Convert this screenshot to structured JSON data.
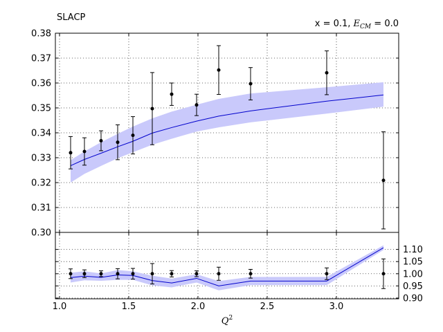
{
  "chart_data": [
    {
      "type": "scatter",
      "panel": "main",
      "label": "SLACP",
      "annotation": "x = 0.1, E_CM = 0.0",
      "annotation_parts": {
        "prefix": "x = 0.1, ",
        "symbol": "E",
        "subscript": "CM",
        "suffix": " = 0.0"
      },
      "xlim": [
        0.97,
        3.45
      ],
      "ylim": [
        0.3,
        0.38
      ],
      "xticks": [
        "1.0",
        "1.5",
        "2.0",
        "2.5",
        "3.0"
      ],
      "xtick_values": [
        1.0,
        1.5,
        2.0,
        2.5,
        3.0
      ],
      "yticks": [
        "0.30",
        "0.31",
        "0.32",
        "0.33",
        "0.34",
        "0.35",
        "0.36",
        "0.37",
        "0.38"
      ],
      "ytick_values": [
        0.3,
        0.31,
        0.32,
        0.33,
        0.34,
        0.35,
        0.36,
        0.37,
        0.38
      ],
      "grid": true,
      "points": {
        "x": [
          1.08,
          1.18,
          1.3,
          1.42,
          1.53,
          1.67,
          1.81,
          1.99,
          2.15,
          2.38,
          2.93,
          3.34
        ],
        "y": [
          0.332,
          0.3325,
          0.3368,
          0.3362,
          0.339,
          0.3497,
          0.3555,
          0.3512,
          0.3652,
          0.3597,
          0.3641,
          0.3209
        ],
        "err": [
          0.0065,
          0.0055,
          0.004,
          0.007,
          0.0075,
          0.0145,
          0.0045,
          0.0043,
          0.0098,
          0.0065,
          0.0088,
          0.0195
        ],
        "color": "#000000"
      },
      "curve": {
        "x": [
          1.08,
          1.18,
          1.3,
          1.42,
          1.53,
          1.67,
          1.81,
          1.99,
          2.15,
          2.38,
          2.93,
          3.34
        ],
        "y": [
          0.3268,
          0.3293,
          0.3318,
          0.3344,
          0.3366,
          0.3399,
          0.3421,
          0.3447,
          0.3467,
          0.3488,
          0.3527,
          0.3552
        ],
        "lo": [
          0.32,
          0.3235,
          0.3267,
          0.3298,
          0.3322,
          0.3352,
          0.3376,
          0.3405,
          0.3422,
          0.3442,
          0.3477,
          0.3505
        ],
        "hi": [
          0.329,
          0.3325,
          0.3362,
          0.3396,
          0.3425,
          0.3458,
          0.3485,
          0.3513,
          0.3536,
          0.3558,
          0.3583,
          0.3603
        ],
        "line_color": "#0000cc",
        "band_color": "#c9c9fb"
      }
    },
    {
      "type": "scatter",
      "panel": "ratio",
      "xlim": [
        0.97,
        3.45
      ],
      "ylim": [
        0.897,
        1.17
      ],
      "yticks": [
        "0.90",
        "0.95",
        "1.00",
        "1.05",
        "1.10"
      ],
      "ytick_values": [
        0.9,
        0.95,
        1.0,
        1.05,
        1.1
      ],
      "xlabel": "Q^2",
      "xlabel_parts": {
        "symbol": "Q",
        "superscript": "2"
      },
      "grid": true,
      "points": {
        "x": [
          1.08,
          1.18,
          1.3,
          1.42,
          1.53,
          1.67,
          1.81,
          1.99,
          2.15,
          2.38,
          2.93,
          3.34
        ],
        "y": [
          1.0,
          1.0,
          1.0,
          1.0,
          1.0,
          1.0,
          1.0,
          1.0,
          1.0,
          1.0,
          1.0,
          1.0
        ],
        "err": [
          0.02,
          0.016,
          0.012,
          0.021,
          0.022,
          0.042,
          0.013,
          0.012,
          0.027,
          0.018,
          0.024,
          0.061
        ],
        "color": "#000000"
      },
      "curve": {
        "x": [
          1.08,
          1.18,
          1.3,
          1.42,
          1.53,
          1.67,
          1.81,
          1.99,
          2.15,
          2.38,
          2.93,
          3.34
        ],
        "y": [
          0.984,
          0.99,
          0.985,
          0.995,
          0.993,
          0.972,
          0.962,
          0.981,
          0.95,
          0.97,
          0.97,
          1.107
        ],
        "lo": [
          0.964,
          0.973,
          0.971,
          0.975,
          0.975,
          0.952,
          0.944,
          0.964,
          0.932,
          0.953,
          0.953,
          1.098
        ],
        "hi": [
          1.004,
          1.01,
          1.001,
          1.015,
          1.01,
          0.992,
          0.98,
          0.998,
          0.97,
          0.987,
          0.987,
          1.117
        ],
        "line_color": "#0000cc",
        "band_color": "#c9c9fb"
      }
    }
  ]
}
